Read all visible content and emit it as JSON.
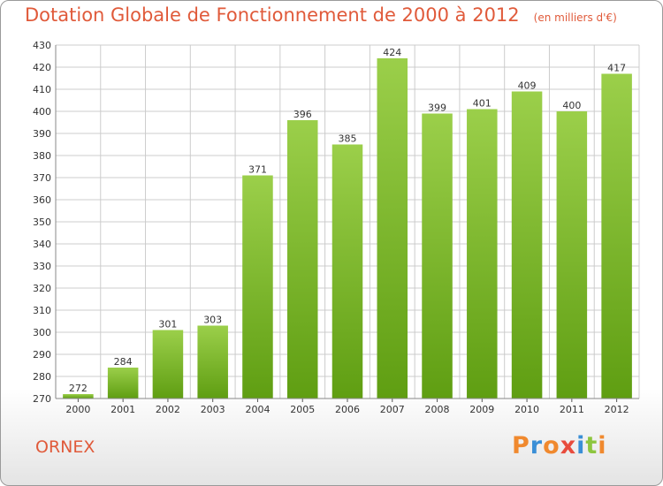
{
  "header": {
    "title": "Dotation Globale de Fonctionnement de 2000 à 2012",
    "unit_note": "(en milliers d'€)"
  },
  "footer": {
    "commune": "ORNEX",
    "logo": "Proxiti"
  },
  "colors": {
    "title": "#e05a3a",
    "bar_top": "#9bcf4a",
    "bar_bottom": "#5f9e12",
    "grid": "#cccccc",
    "logo_letters": [
      "#f0892e",
      "#3a8fd6",
      "#f0892e",
      "#e84c3d",
      "#3a8fd6",
      "#8dc63f",
      "#f0892e"
    ]
  },
  "chart_data": {
    "type": "bar",
    "categories": [
      "2000",
      "2001",
      "2002",
      "2003",
      "2004",
      "2005",
      "2006",
      "2007",
      "2008",
      "2009",
      "2010",
      "2011",
      "2012"
    ],
    "values": [
      272,
      284,
      301,
      303,
      371,
      396,
      385,
      424,
      399,
      401,
      409,
      400,
      417
    ],
    "ylim": [
      270,
      430
    ],
    "yticks": [
      270,
      280,
      290,
      300,
      310,
      320,
      330,
      340,
      350,
      360,
      370,
      380,
      390,
      400,
      410,
      420,
      430
    ],
    "grid": true,
    "data_labels": true
  }
}
